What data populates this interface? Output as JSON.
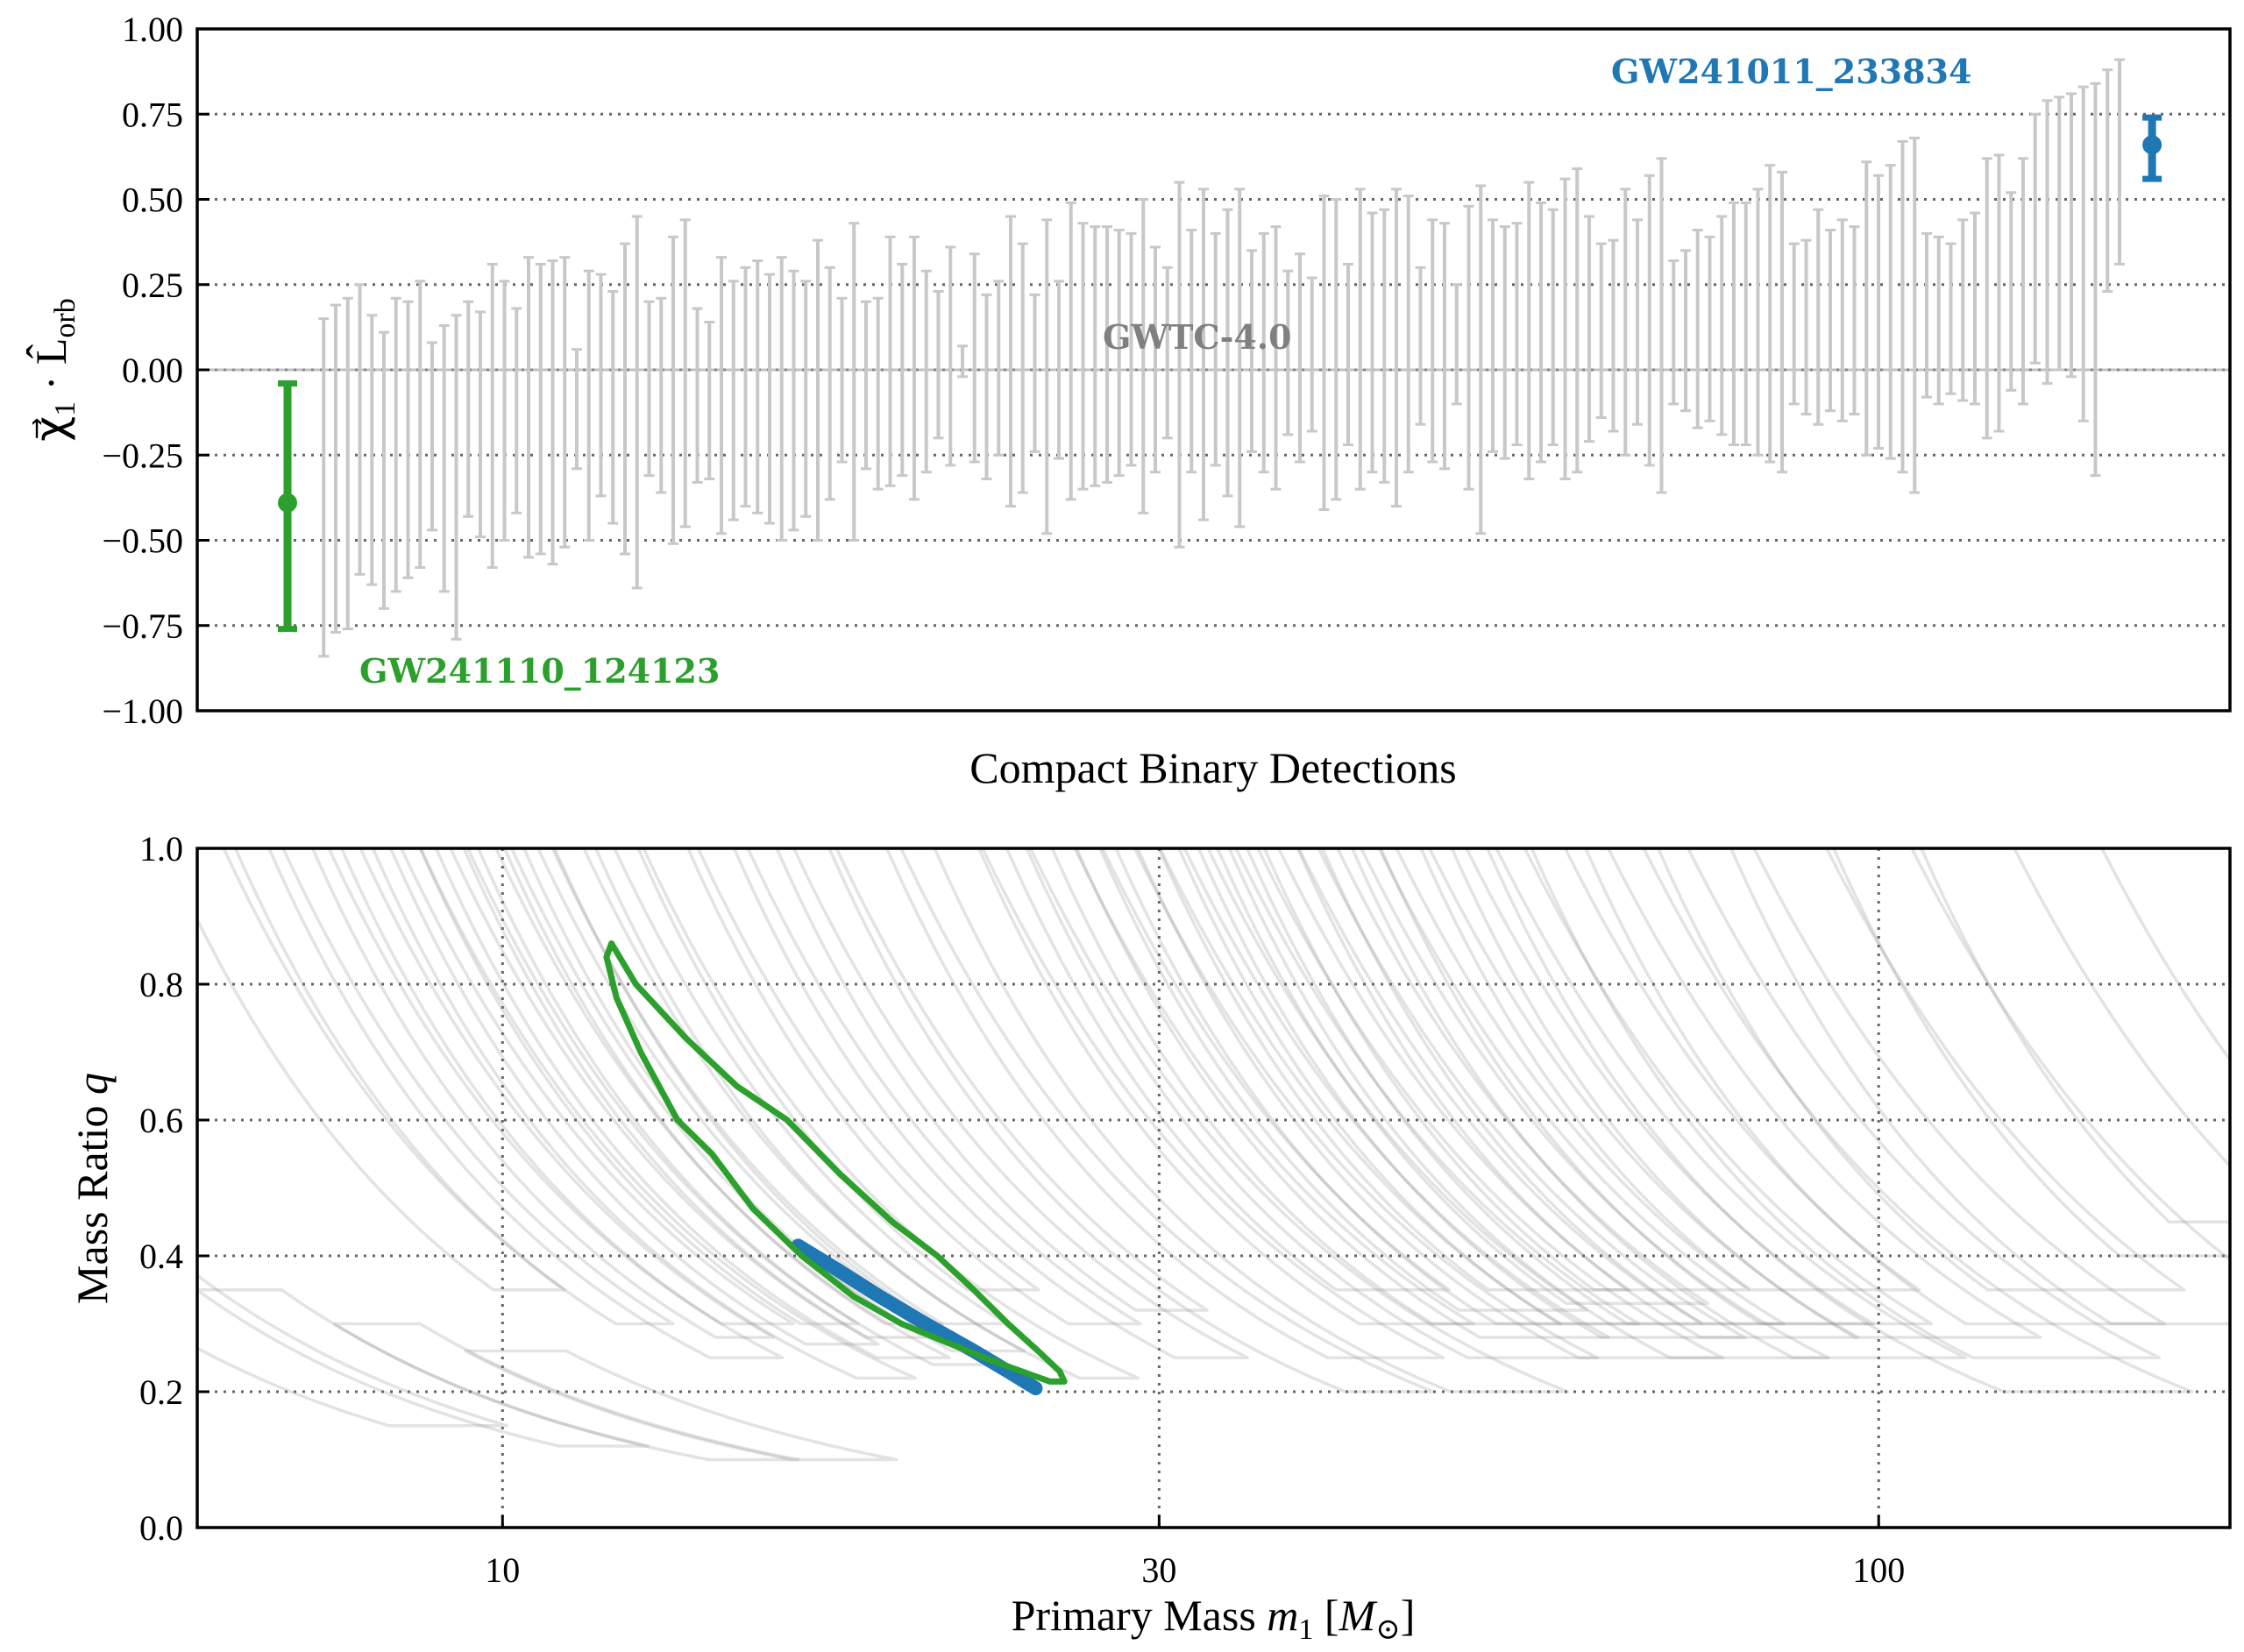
{
  "chart_data": [
    {
      "type": "errorbar",
      "xlabel": "Compact Binary Detections",
      "ylabel": {
        "vec": "χ⃗",
        "sub1": "1",
        "mid": " · L̂",
        "sub2": "orb"
      },
      "ylim": [
        -1.0,
        1.0
      ],
      "yticks": [
        "−1.00",
        "−0.75",
        "−0.50",
        "−0.25",
        "0.00",
        "0.25",
        "0.50",
        "0.75",
        "1.00"
      ],
      "ytick_values": [
        -1.0,
        -0.75,
        -0.5,
        -0.25,
        0.0,
        0.25,
        0.5,
        0.75,
        1.0
      ],
      "grid": "horizontal dotted",
      "annotations": {
        "population": "GWTC-4.0",
        "green_event": "GW241110_124123",
        "blue_event": "GW241011_233834"
      },
      "highlighted": [
        {
          "name": "GW241110_124123",
          "median": -0.39,
          "lower": -0.76,
          "upper": -0.04,
          "color": "#2ca02c",
          "position": "first"
        },
        {
          "name": "GW241011_233834",
          "median": 0.66,
          "lower": 0.56,
          "upper": 0.74,
          "color": "#1f77b4",
          "position": "last"
        }
      ],
      "population_color": "#c8c8c8",
      "population_intervals": {
        "upper": [
          0.15,
          0.19,
          0.21,
          0.25,
          0.16,
          0.11,
          0.21,
          0.2,
          0.26,
          0.08,
          0.13,
          0.16,
          0.2,
          0.17,
          0.31,
          0.26,
          0.18,
          0.33,
          0.31,
          0.32,
          0.33,
          0.06,
          0.29,
          0.28,
          0.23,
          0.37,
          0.45,
          0.2,
          0.21,
          0.39,
          0.44,
          0.18,
          0.14,
          0.33,
          0.26,
          0.3,
          0.32,
          0.28,
          0.33,
          0.29,
          0.26,
          0.38,
          0.3,
          0.21,
          0.43,
          0.2,
          0.21,
          0.39,
          0.31,
          0.39,
          0.29,
          0.23,
          0.36,
          0.07,
          0.34,
          0.22,
          0.26,
          0.45,
          0.37,
          0.22,
          0.44,
          0.26,
          0.49,
          0.43,
          0.42,
          0.42,
          0.41,
          0.4,
          0.5,
          0.36,
          0.3,
          0.55,
          0.41,
          0.53,
          0.4,
          0.47,
          0.53,
          0.35,
          0.4,
          0.42,
          0.29,
          0.34,
          0.27,
          0.51,
          0.5,
          0.31,
          0.53,
          0.46,
          0.47,
          0.53,
          0.51,
          0.3,
          0.44,
          0.43,
          0.25,
          0.48,
          0.54,
          0.44,
          0.42,
          0.43,
          0.55,
          0.49,
          0.47,
          0.56,
          0.59,
          0.45,
          0.37,
          0.38,
          0.53,
          0.44,
          0.57,
          0.62,
          0.32,
          0.35,
          0.41,
          0.39,
          0.45,
          0.49,
          0.49,
          0.53,
          0.6,
          0.58,
          0.37,
          0.38,
          0.47,
          0.41,
          0.44,
          0.42,
          0.61,
          0.57,
          0.6,
          0.67,
          0.68,
          0.4,
          0.39,
          0.37,
          0.44,
          0.46,
          0.62,
          0.63,
          0.52,
          0.62,
          0.75,
          0.79,
          0.8,
          0.81,
          0.83,
          0.84,
          0.88,
          0.91
        ],
        "lower": [
          -0.84,
          -0.77,
          -0.76,
          -0.6,
          -0.63,
          -0.7,
          -0.65,
          -0.61,
          -0.58,
          -0.47,
          -0.65,
          -0.79,
          -0.43,
          -0.49,
          -0.58,
          -0.5,
          -0.42,
          -0.55,
          -0.54,
          -0.57,
          -0.52,
          -0.29,
          -0.5,
          -0.37,
          -0.45,
          -0.54,
          -0.64,
          -0.31,
          -0.36,
          -0.51,
          -0.46,
          -0.33,
          -0.32,
          -0.48,
          -0.44,
          -0.4,
          -0.42,
          -0.45,
          -0.5,
          -0.47,
          -0.43,
          -0.5,
          -0.38,
          -0.27,
          -0.5,
          -0.29,
          -0.35,
          -0.34,
          -0.31,
          -0.38,
          -0.3,
          -0.2,
          -0.28,
          -0.02,
          -0.27,
          -0.32,
          -0.25,
          -0.4,
          -0.36,
          -0.24,
          -0.48,
          -0.26,
          -0.38,
          -0.35,
          -0.34,
          -0.33,
          -0.31,
          -0.28,
          -0.42,
          -0.3,
          -0.2,
          -0.52,
          -0.3,
          -0.44,
          -0.28,
          -0.37,
          -0.46,
          -0.24,
          -0.3,
          -0.35,
          -0.19,
          -0.27,
          -0.18,
          -0.41,
          -0.38,
          -0.22,
          -0.35,
          -0.3,
          -0.33,
          -0.4,
          -0.3,
          -0.16,
          -0.27,
          -0.29,
          -0.1,
          -0.35,
          -0.48,
          -0.24,
          -0.26,
          -0.22,
          -0.32,
          -0.27,
          -0.22,
          -0.32,
          -0.3,
          -0.21,
          -0.14,
          -0.18,
          -0.25,
          -0.16,
          -0.28,
          -0.36,
          -0.1,
          -0.12,
          -0.17,
          -0.15,
          -0.19,
          -0.22,
          -0.22,
          -0.25,
          -0.27,
          -0.3,
          -0.1,
          -0.13,
          -0.16,
          -0.12,
          -0.15,
          -0.13,
          -0.25,
          -0.23,
          -0.26,
          -0.3,
          -0.36,
          -0.08,
          -0.1,
          -0.07,
          -0.09,
          -0.1,
          -0.2,
          -0.18,
          -0.06,
          -0.1,
          0.02,
          -0.04,
          0.0,
          -0.02,
          -0.15,
          -0.31,
          0.23,
          0.31
        ]
      }
    },
    {
      "type": "contour",
      "xlabel": {
        "pre": "Primary Mass ",
        "var": "m",
        "sub": "1",
        "open": " [",
        "unit": "M",
        "unit_sub": "⊙",
        "close": "]"
      },
      "ylabel": {
        "pre": "Mass Ratio ",
        "var": "q"
      },
      "xscale": "log",
      "xlim": [
        6,
        180
      ],
      "ylim": [
        0.0,
        1.0
      ],
      "xticks": [
        "10",
        "30",
        "100"
      ],
      "xtick_values": [
        10,
        30,
        100
      ],
      "yticks": [
        "0.0",
        "0.2",
        "0.4",
        "0.6",
        "0.8",
        "1.0"
      ],
      "ytick_values": [
        0.0,
        0.2,
        0.4,
        0.6,
        0.8,
        1.0
      ],
      "grid": "dotted",
      "colors": {
        "green": "#2ca02c",
        "blue": "#1f77b4",
        "population": "#808080"
      },
      "green_contour": [
        [
          12.0,
          0.86
        ],
        [
          12.5,
          0.8
        ],
        [
          13.6,
          0.72
        ],
        [
          14.8,
          0.65
        ],
        [
          16.1,
          0.6
        ],
        [
          17.6,
          0.52
        ],
        [
          19.2,
          0.45
        ],
        [
          20.7,
          0.4
        ],
        [
          22.0,
          0.35
        ],
        [
          23.3,
          0.3
        ],
        [
          24.5,
          0.26
        ],
        [
          25.4,
          0.23
        ],
        [
          25.6,
          0.215
        ],
        [
          25.0,
          0.215
        ],
        [
          24.2,
          0.225
        ],
        [
          22.4,
          0.25
        ],
        [
          20.6,
          0.28
        ],
        [
          19.5,
          0.3
        ],
        [
          18.0,
          0.34
        ],
        [
          16.5,
          0.4
        ],
        [
          15.2,
          0.47
        ],
        [
          14.2,
          0.55
        ],
        [
          13.4,
          0.6
        ],
        [
          12.6,
          0.7
        ],
        [
          12.1,
          0.78
        ],
        [
          11.9,
          0.84
        ],
        [
          12.0,
          0.86
        ]
      ],
      "blue_contour": [
        [
          16.4,
          0.415
        ],
        [
          17.5,
          0.38
        ],
        [
          18.8,
          0.34
        ],
        [
          20.3,
          0.3
        ],
        [
          22.0,
          0.26
        ],
        [
          23.3,
          0.23
        ],
        [
          24.4,
          0.205
        ]
      ],
      "population_contours": [
        {
          "mc": 2.8,
          "q_min": 0.15,
          "q_max": 0.6,
          "spread": 0.08
        },
        {
          "mc": 3.2,
          "q_min": 0.12,
          "q_max": 0.35,
          "spread": 0.06
        },
        {
          "mc": 3.7,
          "q_min": 0.1,
          "q_max": 0.3,
          "spread": 0.06
        },
        {
          "mc": 4.3,
          "q_min": 0.1,
          "q_max": 0.26,
          "spread": 0.07
        },
        {
          "mc": 5.2,
          "q_min": 0.35,
          "q_max": 1,
          "spread": 0.05
        },
        {
          "mc": 5.8,
          "q_min": 0.3,
          "q_max": 1,
          "spread": 0.04
        },
        {
          "mc": 6.2,
          "q_min": 0.25,
          "q_max": 1,
          "spread": 0.05
        },
        {
          "mc": 6.6,
          "q_min": 0.28,
          "q_max": 1,
          "spread": 0.04
        },
        {
          "mc": 7.0,
          "q_min": 0.3,
          "q_max": 1,
          "spread": 0.05
        },
        {
          "mc": 7.3,
          "q_min": 0.22,
          "q_max": 1,
          "spread": 0.04
        },
        {
          "mc": 7.6,
          "q_min": 0.27,
          "q_max": 1,
          "spread": 0.05
        },
        {
          "mc": 7.9,
          "q_min": 0.3,
          "q_max": 1,
          "spread": 0.04
        },
        {
          "mc": 8.2,
          "q_min": 0.25,
          "q_max": 1,
          "spread": 0.05
        },
        {
          "mc": 8.5,
          "q_min": 0.28,
          "q_max": 1,
          "spread": 0.04
        },
        {
          "mc": 8.8,
          "q_min": 0.24,
          "q_max": 1,
          "spread": 0.05
        },
        {
          "mc": 9.1,
          "q_min": 0.3,
          "q_max": 1,
          "spread": 0.04
        },
        {
          "mc": 9.5,
          "q_min": 0.26,
          "q_max": 1,
          "spread": 0.05
        },
        {
          "mc": 10.0,
          "q_min": 0.3,
          "q_max": 1,
          "spread": 0.05
        },
        {
          "mc": 10.6,
          "q_min": 0.22,
          "q_max": 1,
          "spread": 0.04
        },
        {
          "mc": 11.5,
          "q_min": 0.35,
          "q_max": 1,
          "spread": 0.05
        },
        {
          "mc": 12.5,
          "q_min": 0.3,
          "q_max": 1,
          "spread": 0.05
        },
        {
          "mc": 13.5,
          "q_min": 0.25,
          "q_max": 1,
          "spread": 0.05
        },
        {
          "mc": 14.5,
          "q_min": 0.32,
          "q_max": 1,
          "spread": 0.05
        },
        {
          "mc": 16.0,
          "q_min": 0.2,
          "q_max": 1,
          "spread": 0.06
        },
        {
          "mc": 18.0,
          "q_min": 0.25,
          "q_max": 1,
          "spread": 0.08
        },
        {
          "mc": 19.5,
          "q_min": 0.2,
          "q_max": 1,
          "spread": 0.08
        },
        {
          "mc": 21.0,
          "q_min": 0.3,
          "q_max": 1,
          "spread": 0.08
        },
        {
          "mc": 22.0,
          "q_min": 0.35,
          "q_max": 1,
          "spread": 0.08
        },
        {
          "mc": 23.0,
          "q_min": 0.25,
          "q_max": 1,
          "spread": 0.09
        },
        {
          "mc": 24.0,
          "q_min": 0.3,
          "q_max": 1,
          "spread": 0.09
        },
        {
          "mc": 25.0,
          "q_min": 0.28,
          "q_max": 1,
          "spread": 0.09
        },
        {
          "mc": 26.0,
          "q_min": 0.32,
          "q_max": 1,
          "spread": 0.09
        },
        {
          "mc": 27.0,
          "q_min": 0.3,
          "q_max": 1,
          "spread": 0.1
        },
        {
          "mc": 28.0,
          "q_min": 0.25,
          "q_max": 1,
          "spread": 0.1
        },
        {
          "mc": 29.0,
          "q_min": 0.35,
          "q_max": 1,
          "spread": 0.1
        },
        {
          "mc": 30.0,
          "q_min": 0.3,
          "q_max": 1,
          "spread": 0.1
        },
        {
          "mc": 31.0,
          "q_min": 0.28,
          "q_max": 1,
          "spread": 0.1
        },
        {
          "mc": 32.0,
          "q_min": 0.33,
          "q_max": 1,
          "spread": 0.1
        },
        {
          "mc": 33.0,
          "q_min": 0.25,
          "q_max": 1,
          "spread": 0.11
        },
        {
          "mc": 34.0,
          "q_min": 0.3,
          "q_max": 1,
          "spread": 0.11
        },
        {
          "mc": 35.0,
          "q_min": 0.35,
          "q_max": 1,
          "spread": 0.11
        },
        {
          "mc": 37.0,
          "q_min": 0.28,
          "q_max": 1,
          "spread": 0.11
        },
        {
          "mc": 39.0,
          "q_min": 0.3,
          "q_max": 1,
          "spread": 0.12
        },
        {
          "mc": 41.0,
          "q_min": 0.25,
          "q_max": 1,
          "spread": 0.12
        },
        {
          "mc": 43.0,
          "q_min": 0.3,
          "q_max": 1,
          "spread": 0.12
        },
        {
          "mc": 46.0,
          "q_min": 0.35,
          "q_max": 1,
          "spread": 0.12
        },
        {
          "mc": 49.0,
          "q_min": 0.28,
          "q_max": 1,
          "spread": 0.13
        },
        {
          "mc": 52.0,
          "q_min": 0.2,
          "q_max": 1,
          "spread": 0.13
        },
        {
          "mc": 56.0,
          "q_min": 0.25,
          "q_max": 1,
          "spread": 0.13
        },
        {
          "mc": 62.0,
          "q_min": 0.3,
          "q_max": 1,
          "spread": 0.14
        },
        {
          "mc": 70.0,
          "q_min": 0.35,
          "q_max": 1,
          "spread": 0.14
        },
        {
          "mc": 80.0,
          "q_min": 0.3,
          "q_max": 1,
          "spread": 0.15
        },
        {
          "mc": 95.0,
          "q_min": 0.4,
          "q_max": 1,
          "spread": 0.15
        },
        {
          "mc": 110.0,
          "q_min": 0.45,
          "q_max": 1,
          "spread": 0.15
        }
      ]
    }
  ]
}
